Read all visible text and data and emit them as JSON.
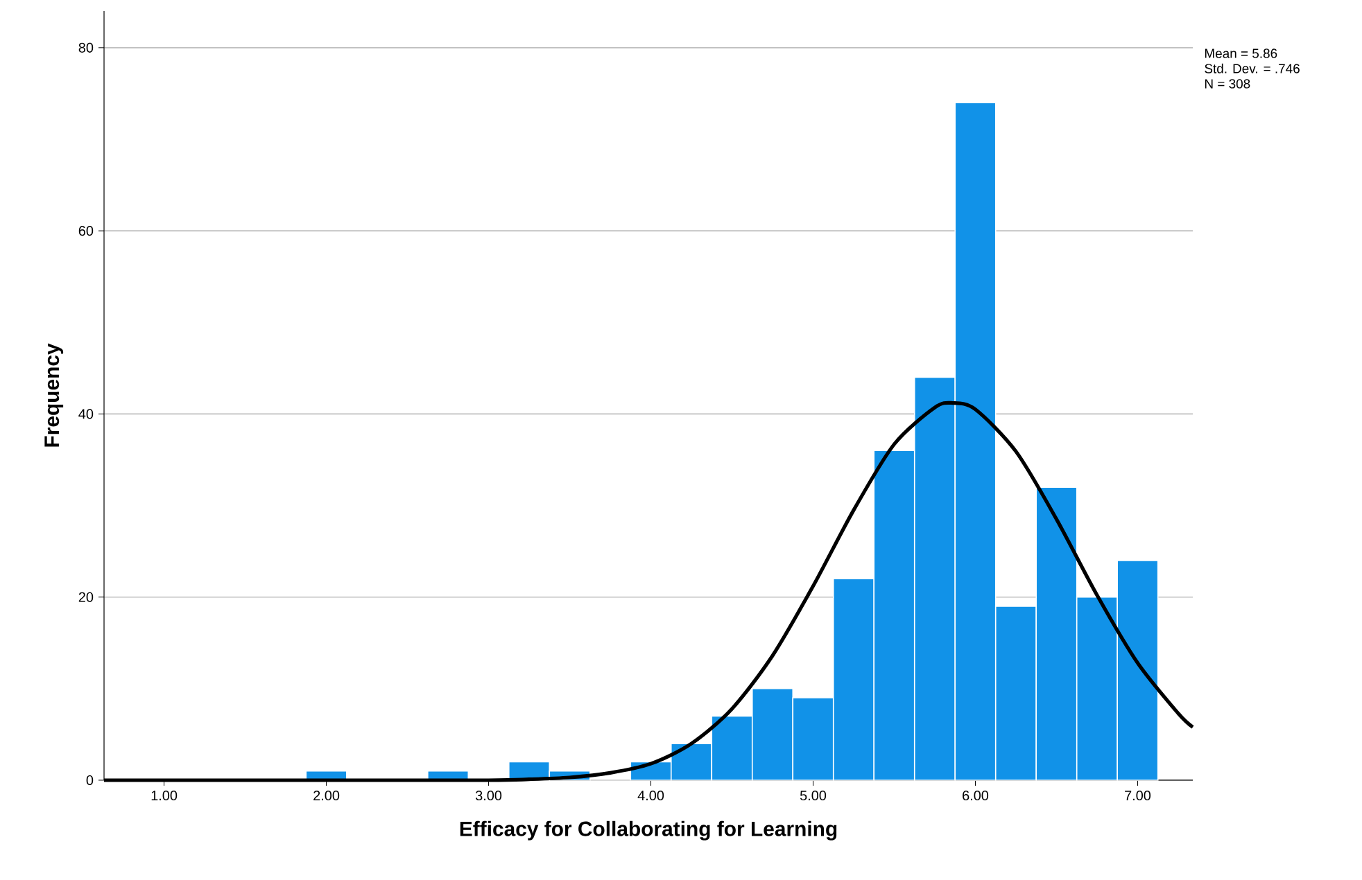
{
  "chart_data": {
    "type": "histogram",
    "xlabel": "Efficacy for Collaborating for Learning",
    "ylabel": "Frequency",
    "xlim": [
      0.63,
      7.34
    ],
    "xticks": [
      {
        "value": 1,
        "label": "1.00"
      },
      {
        "value": 2,
        "label": "2.00"
      },
      {
        "value": 3,
        "label": "3.00"
      },
      {
        "value": 4,
        "label": "4.00"
      },
      {
        "value": 5,
        "label": "5.00"
      },
      {
        "value": 6,
        "label": "6.00"
      },
      {
        "value": 7,
        "label": "7.00"
      }
    ],
    "ylim": [
      0,
      84
    ],
    "yticks": [
      0,
      20,
      40,
      60,
      80
    ],
    "grid": "y",
    "annotations": [
      "Mean = 5.86",
      "Std. Dev. = .746",
      "N = 308"
    ],
    "series": [
      {
        "color": "#1192e8",
        "bins": [
          1.875,
          2.125,
          2.375,
          2.625,
          2.875,
          3.125,
          3.375,
          3.625,
          3.875,
          4.125,
          4.375,
          4.625,
          4.875,
          5.125,
          5.375,
          5.625,
          5.875,
          6.125,
          6.375,
          6.625,
          6.875,
          7.125
        ],
        "values": [
          1,
          0,
          0,
          1,
          0,
          2,
          1,
          0,
          2,
          4,
          7,
          10,
          9,
          22,
          36,
          44,
          74,
          19,
          32,
          20,
          24
        ]
      },
      {
        "type": "line",
        "color": "#000000",
        "x": [
          0.63,
          2.0,
          3.0,
          3.25,
          3.5,
          3.75,
          4.0,
          4.25,
          4.5,
          4.75,
          5.0,
          5.25,
          5.5,
          5.75,
          5.86,
          6.0,
          6.25,
          6.5,
          6.75,
          7.0,
          7.25,
          7.34
        ],
        "values": [
          0,
          0,
          0,
          0.1,
          0.3,
          0.8,
          1.8,
          4.0,
          7.8,
          13.6,
          21.2,
          29.5,
          36.7,
          40.7,
          41.2,
          40.5,
          35.9,
          28.5,
          20.2,
          12.8,
          7.3,
          5.8
        ]
      }
    ]
  }
}
